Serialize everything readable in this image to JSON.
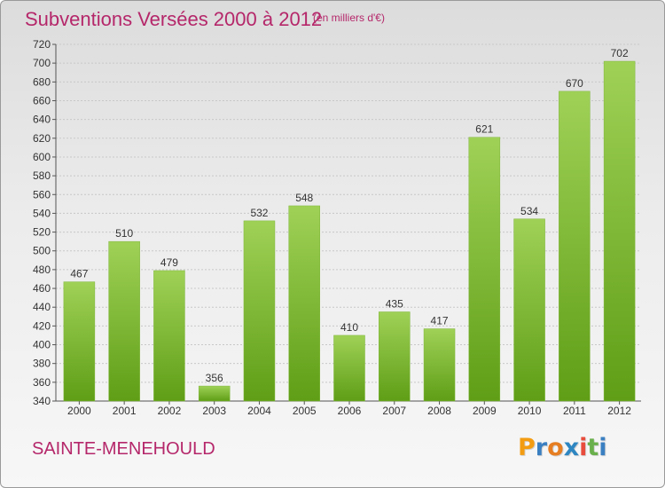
{
  "header": {
    "title": "Subventions Versées 2000 à 2012",
    "subtitle": "(en milliers d'€)"
  },
  "footer": {
    "city": "SAINTE-MENEHOULD",
    "logo_letters": [
      "P",
      "r",
      "o",
      "x",
      "i",
      "t",
      "i"
    ],
    "logo_colors": [
      "#f39c12",
      "#3a7fc1",
      "#e67e22",
      "#2e86c1",
      "#e74c3c",
      "#6ab04c",
      "#3a7fc1"
    ]
  },
  "chart_data": {
    "type": "bar",
    "categories": [
      "2000",
      "2001",
      "2002",
      "2003",
      "2004",
      "2005",
      "2006",
      "2007",
      "2008",
      "2009",
      "2010",
      "2011",
      "2012"
    ],
    "values": [
      467,
      510,
      479,
      356,
      532,
      548,
      410,
      435,
      417,
      621,
      534,
      670,
      702
    ],
    "title": "Subventions Versées 2000 à 2012",
    "ylim": [
      340,
      720
    ],
    "y_ticks": [
      340,
      360,
      380,
      400,
      420,
      440,
      460,
      480,
      500,
      520,
      540,
      560,
      580,
      600,
      620,
      640,
      660,
      680,
      700,
      720
    ],
    "grid": true,
    "bar_color_top": "#9fd157",
    "bar_color_bottom": "#5f9e16",
    "label_color": "#333333"
  }
}
